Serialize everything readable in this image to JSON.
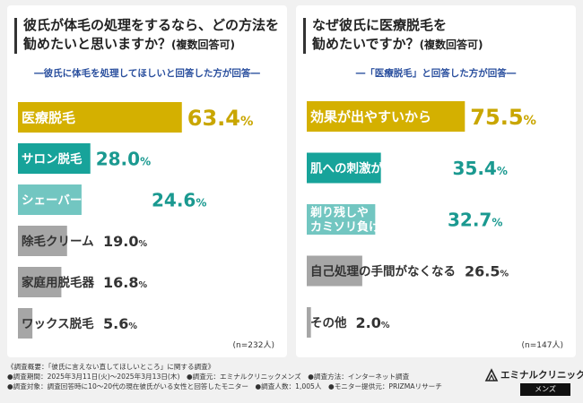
{
  "left": {
    "title_line1": "彼氏が体毛の処理をするなら、どの方法を",
    "title_line2": "勧めたいと思いますか？",
    "title_note": "(複数回答可)",
    "subtitle": "―彼氏に体毛を処理してほしいと回答した方が回答―",
    "sample": "(n=232人)"
  },
  "right": {
    "title_line1": "なぜ彼氏に医療脱毛を",
    "title_line2": "勧めたいですか？",
    "title_note": "(複数回答可)",
    "subtitle": "―「医療脱毛」と回答した方が回答―",
    "sample": "(n=147人)"
  },
  "chart_data": [
    {
      "type": "bar",
      "orientation": "horizontal",
      "categories": [
        "医療脱毛",
        "サロン脱毛",
        "シェーバーやカミソリ",
        "除毛クリーム",
        "家庭用脱毛器",
        "ワックス脱毛"
      ],
      "values": [
        63.4,
        28.0,
        24.6,
        19.0,
        16.8,
        5.6
      ],
      "unit": "%",
      "colors": [
        "#d4b000",
        "#17a39a",
        "#72c6c1",
        "#a6a6a6",
        "#a6a6a6",
        "#a6a6a6"
      ]
    },
    {
      "type": "bar",
      "orientation": "horizontal",
      "categories": [
        "効果が出やすいから",
        "肌への刺激が抑えられる",
        "剃り残しや\nカミソリ負けがなくなる",
        "自己処理の手間がなくなる",
        "その他"
      ],
      "values": [
        75.5,
        35.4,
        32.7,
        26.5,
        2.0
      ],
      "unit": "%",
      "colors": [
        "#d4b000",
        "#17a39a",
        "#72c6c1",
        "#a6a6a6",
        "#a6a6a6"
      ]
    }
  ],
  "footer": {
    "line1": "《調査概要：「彼氏に言えない直してほしいところ」に関する調査》",
    "line2": "●調査期間：2025年3月11日(火)～2025年3月13日(木)　●調査元：エミナルクリニックメンズ　●調査方法：インターネット調査",
    "line3": "●調査対象：調査回答時に10～20代の現在彼氏がいる女性と回答したモニター　●調査人数：1,005人　●モニター提供元：PRIZMAリサーチ"
  },
  "logo": {
    "main": "エミナルクリニック",
    "sub": "メンズ"
  }
}
